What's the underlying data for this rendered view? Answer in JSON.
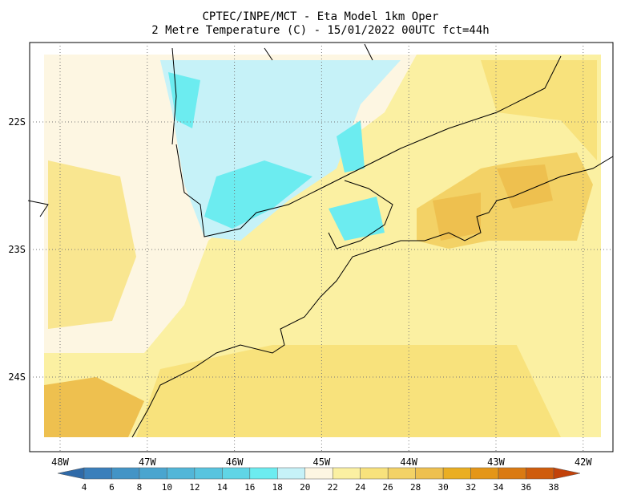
{
  "title": {
    "line1": "CPTEC/INPE/MCT -  Eta Model 1km Oper",
    "line2": "2 Metre Temperature (C) - 15/01/2022 00UTC fct=44h"
  },
  "lat_labels": [
    "22S",
    "23S",
    "24S"
  ],
  "lon_labels": [
    "48W",
    "47W",
    "46W",
    "45W",
    "44W",
    "43W",
    "42W"
  ],
  "colorbar": {
    "ticks": [
      4,
      6,
      8,
      10,
      12,
      14,
      16,
      18,
      20,
      22,
      24,
      26,
      28,
      30,
      32,
      34,
      36,
      38
    ],
    "colors": [
      "#2f6aa8",
      "#3a7fbb",
      "#4394c6",
      "#4aa5cf",
      "#52b6d8",
      "#58c4df",
      "#60d5e6",
      "#6cecf0",
      "#c6f2f8",
      "#fdf6e2",
      "#fbf0a2",
      "#f8e27c",
      "#f3d266",
      "#eec04f",
      "#eaae22",
      "#e49618",
      "#da7a12",
      "#cf5c0c",
      "#c2420a"
    ]
  }
}
